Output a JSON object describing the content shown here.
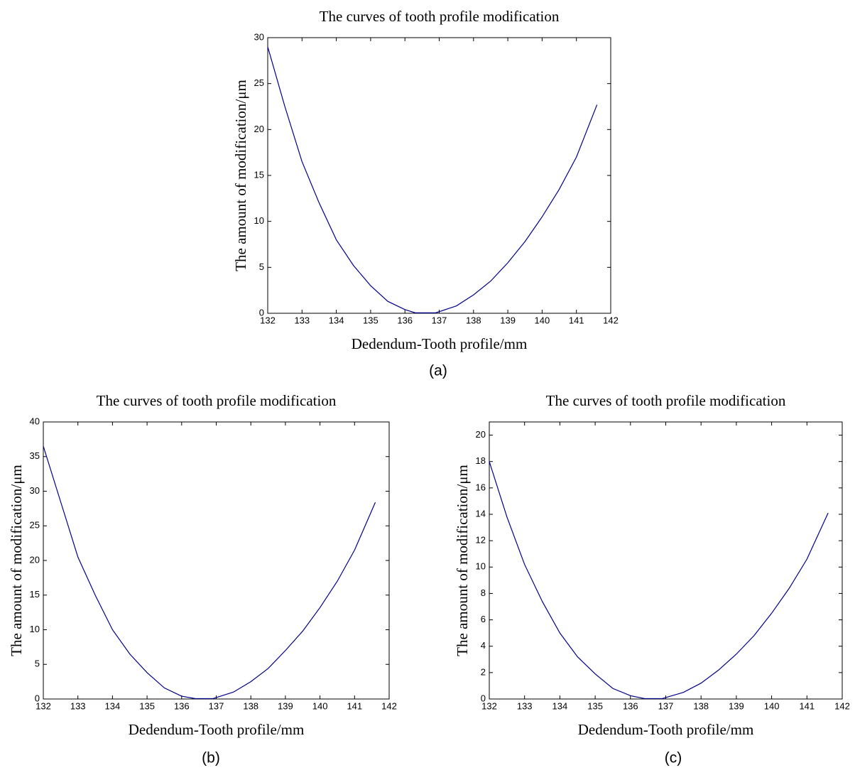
{
  "chart_data": [
    {
      "type": "line",
      "title": "The curves of tooth profile modification",
      "x_label": "Dedendum-Tooth profile/mm",
      "y_label": "The amount of modification/μm",
      "caption": "(a)",
      "x": [
        132,
        132.5,
        133,
        133.5,
        134,
        134.5,
        135,
        135.5,
        136,
        136.3,
        136.9,
        137.5,
        138,
        138.5,
        139,
        139.5,
        140,
        140.5,
        141,
        141.6
      ],
      "series": [
        {
          "color": "#00008b",
          "values": [
            29,
            22.5,
            16.5,
            12,
            8,
            5.2,
            3,
            1.3,
            0.4,
            0.05,
            0.05,
            0.8,
            2,
            3.5,
            5.5,
            7.8,
            10.5,
            13.5,
            17,
            22.7
          ]
        }
      ],
      "xlim": [
        132,
        142
      ],
      "xticks": [
        132,
        133,
        134,
        135,
        136,
        137,
        138,
        139,
        140,
        141,
        142
      ],
      "ylim": [
        0,
        30
      ],
      "yticks": [
        0,
        5,
        10,
        15,
        20,
        25,
        30
      ],
      "grid": false
    },
    {
      "type": "line",
      "title": "The curves of tooth profile modification",
      "x_label": "Dedendum-Tooth profile/mm",
      "y_label": "The amount of modification/μm",
      "caption": "(b)",
      "x": [
        132,
        132.5,
        133,
        133.5,
        134,
        134.5,
        135,
        135.5,
        136,
        136.4,
        136.9,
        137.5,
        138,
        138.5,
        139,
        139.5,
        140,
        140.5,
        141,
        141.6
      ],
      "series": [
        {
          "color": "#00008b",
          "values": [
            36.5,
            28.5,
            20.5,
            15,
            10,
            6.5,
            3.8,
            1.6,
            0.4,
            0.05,
            0.05,
            1,
            2.5,
            4.4,
            7,
            9.8,
            13.2,
            17,
            21.5,
            28.4
          ]
        }
      ],
      "xlim": [
        132,
        142
      ],
      "xticks": [
        132,
        133,
        134,
        135,
        136,
        137,
        138,
        139,
        140,
        141,
        142
      ],
      "ylim": [
        0,
        40
      ],
      "yticks": [
        0,
        5,
        10,
        15,
        20,
        25,
        30,
        35,
        40
      ],
      "grid": false
    },
    {
      "type": "line",
      "title": "The curves of tooth profile modification",
      "x_label": "Dedendum-Tooth profile/mm",
      "y_label": "The amount of modification/μm",
      "caption": "(c)",
      "x": [
        132,
        132.5,
        133,
        133.5,
        134,
        134.5,
        135,
        135.5,
        136,
        136.4,
        136.9,
        137.5,
        138,
        138.5,
        139,
        139.5,
        140,
        140.5,
        141,
        141.6
      ],
      "series": [
        {
          "color": "#00008b",
          "values": [
            18,
            13.8,
            10.2,
            7.4,
            5,
            3.2,
            1.9,
            0.8,
            0.25,
            0.03,
            0.03,
            0.5,
            1.2,
            2.2,
            3.4,
            4.8,
            6.5,
            8.4,
            10.6,
            14.1
          ]
        }
      ],
      "xlim": [
        132,
        142
      ],
      "xticks": [
        132,
        133,
        134,
        135,
        136,
        137,
        138,
        139,
        140,
        141,
        142
      ],
      "ylim": [
        0,
        21
      ],
      "yticks": [
        0,
        2,
        4,
        6,
        8,
        10,
        12,
        14,
        16,
        18,
        20
      ],
      "grid": false
    }
  ]
}
